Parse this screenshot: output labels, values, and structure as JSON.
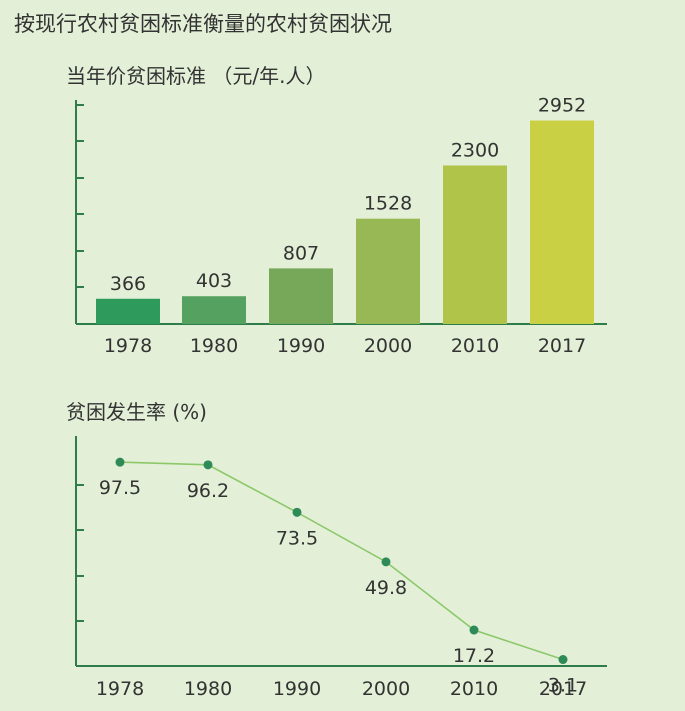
{
  "page_title": "按现行农村贫困标准衡量的农村贫困状况",
  "chart_data": [
    {
      "type": "bar",
      "title": "当年价贫困标准 （元/年.人）",
      "categories": [
        "1978",
        "1980",
        "1990",
        "2000",
        "2010",
        "2017"
      ],
      "values": [
        366,
        403,
        807,
        1528,
        2300,
        2952
      ],
      "data_labels": [
        "366",
        "403",
        "807",
        "1528",
        "2300",
        "2952"
      ],
      "colors": [
        "#2e9a5c",
        "#54a160",
        "#77a85a",
        "#98b755",
        "#b0c44a",
        "#cad043"
      ],
      "ylim": [
        0,
        3250
      ],
      "grid": false,
      "legend": "none"
    },
    {
      "type": "line",
      "title": "贫困发生率 (%)",
      "categories": [
        "1978",
        "1980",
        "1990",
        "2000",
        "2010",
        "2017"
      ],
      "values": [
        97.5,
        96.2,
        73.5,
        49.8,
        17.2,
        3.1
      ],
      "data_labels": [
        "97.5",
        "96.2",
        "73.5",
        "49.8",
        "17.2",
        "3.1"
      ],
      "line_color": "#8cc86a",
      "marker_color": "#2e8b57",
      "ylim": [
        0,
        110
      ],
      "grid": false,
      "legend": "none"
    }
  ]
}
